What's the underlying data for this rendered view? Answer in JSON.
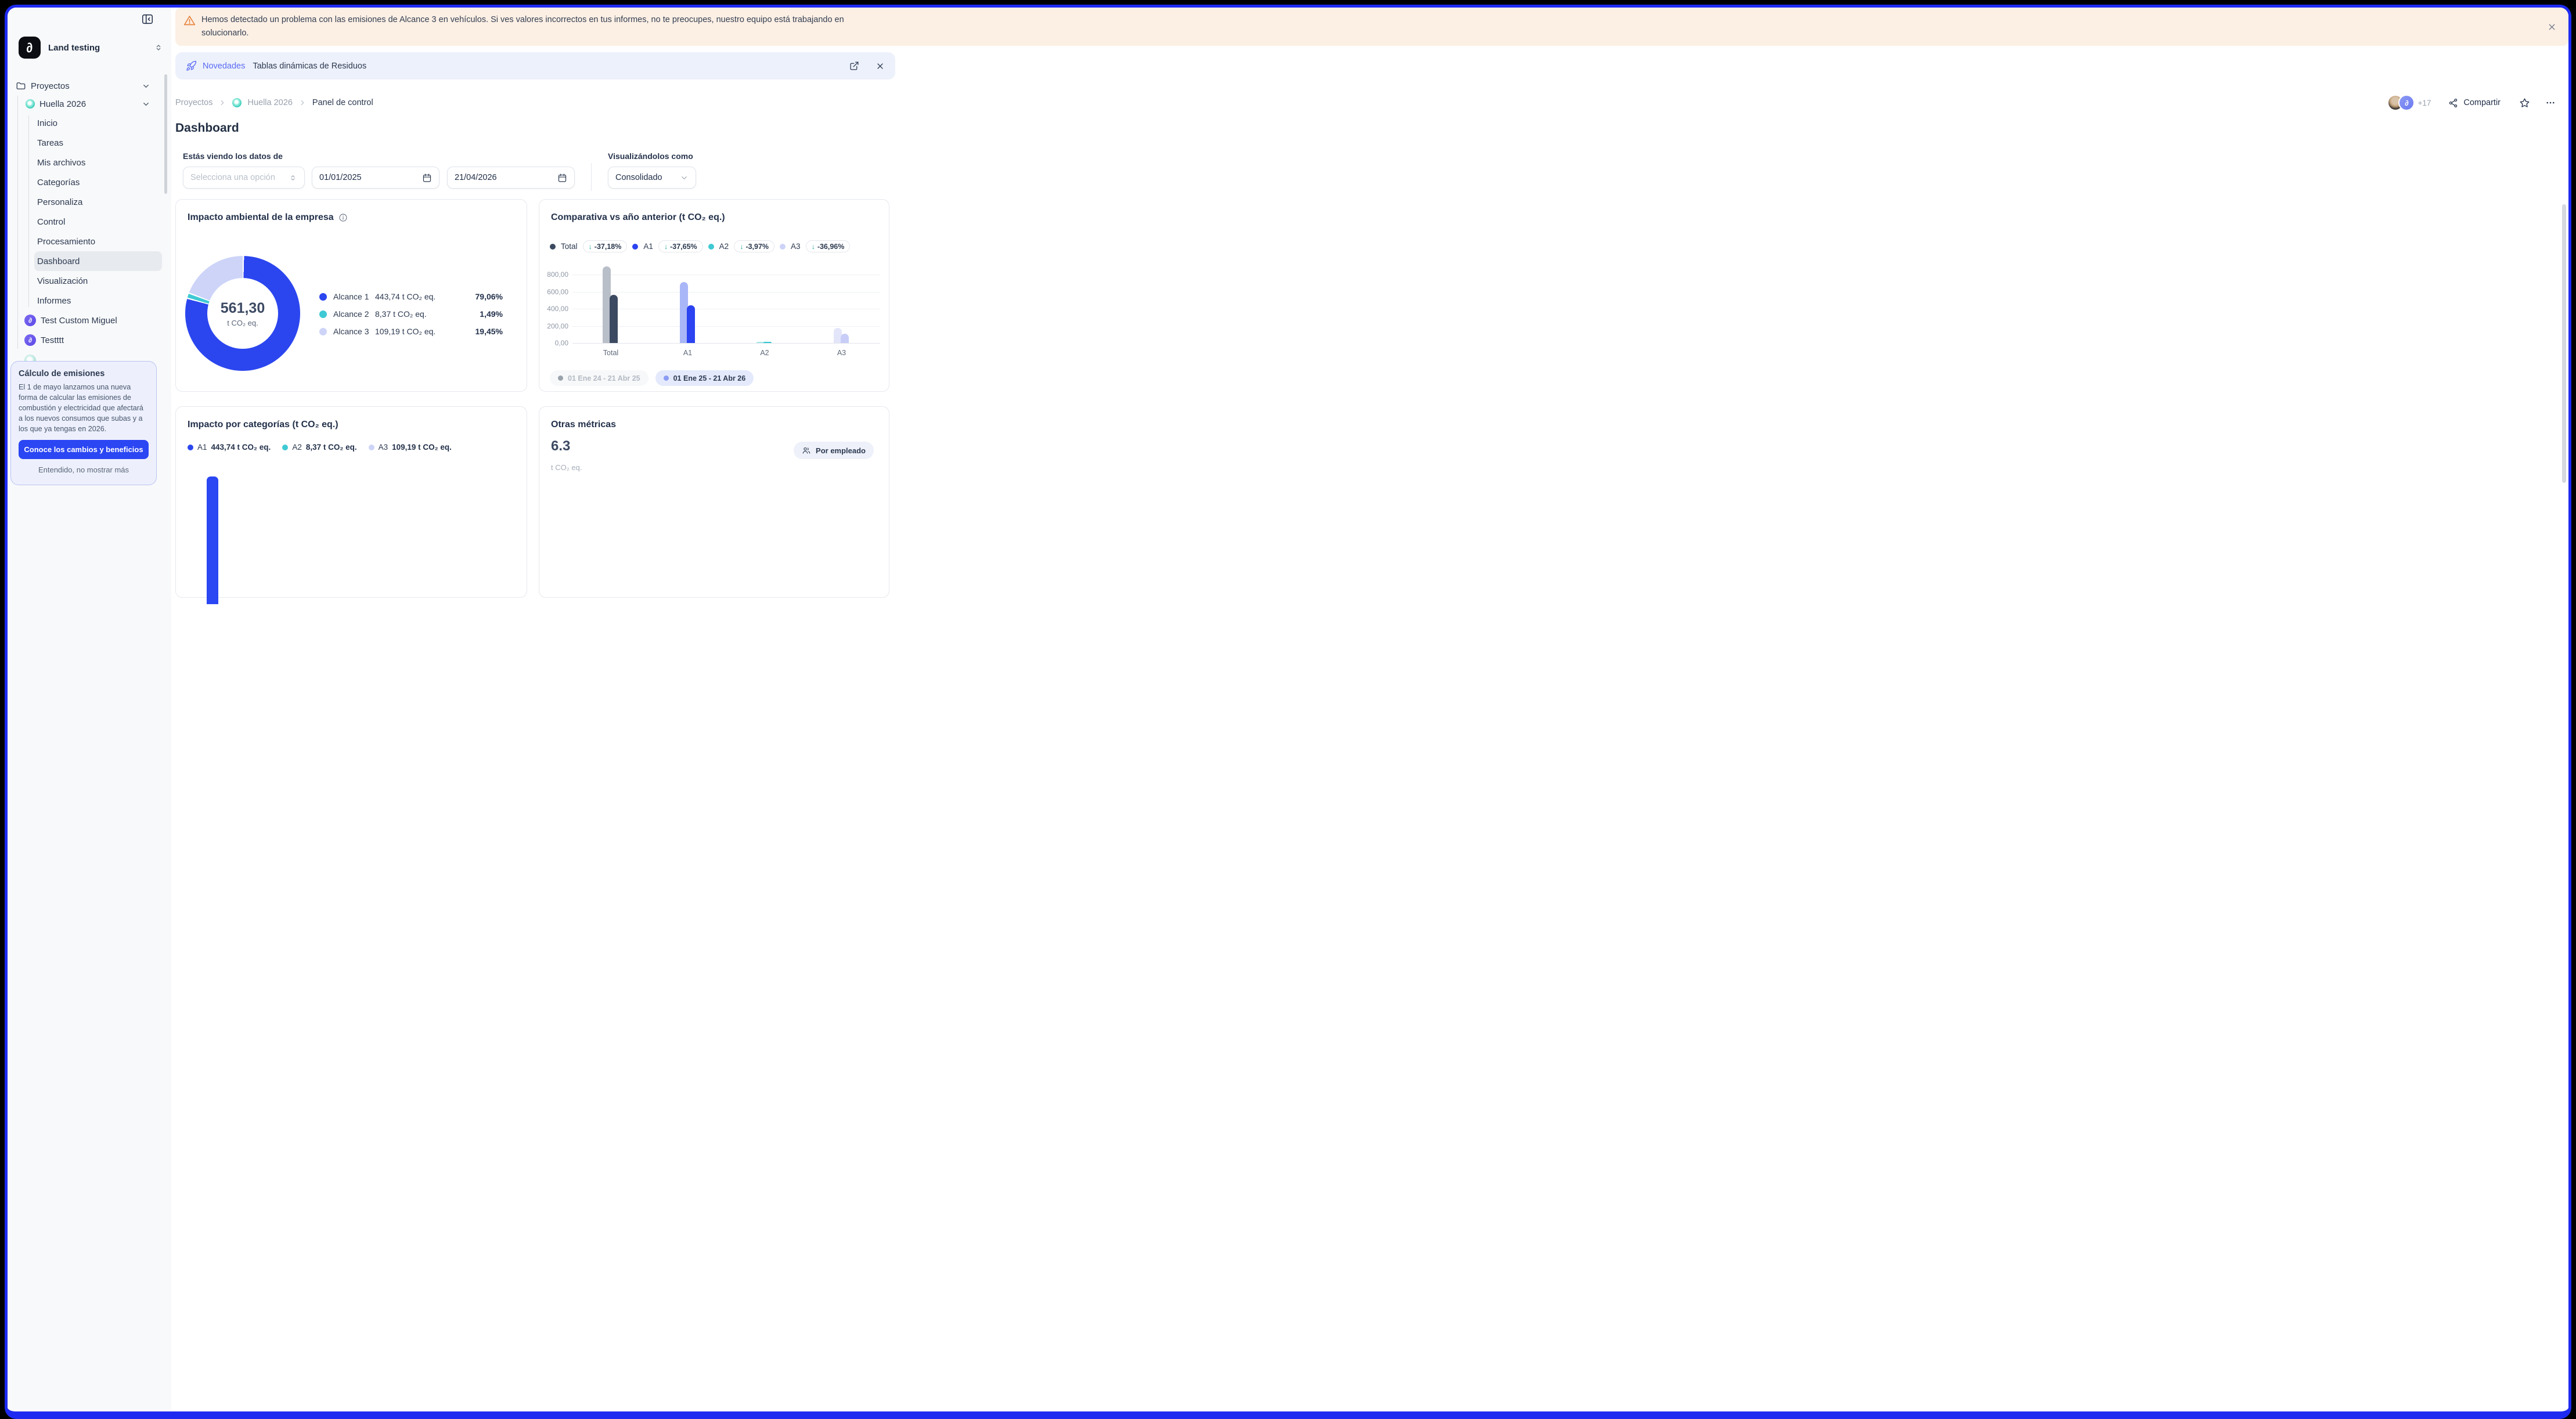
{
  "window": {
    "frame_color": "#1e2af0"
  },
  "alert_banner": {
    "text": "Hemos detectado un problema con las emisiones de Alcance 3 en vehículos. Si ves valores incorrectos en tus informes, no te preocupes, nuestro equipo está trabajando en solucionarlo."
  },
  "news_bar": {
    "badge": "Novedades",
    "text": "Tablas dinámicas de Residuos",
    "accent_color": "#5a6bf4"
  },
  "sidebar": {
    "workspace": {
      "name": "Land testing"
    },
    "sections": {
      "proyectos_label": "Proyectos",
      "project_name": "Huella 2026",
      "items": [
        "Inicio",
        "Tareas",
        "Mis archivos",
        "Categorías",
        "Personaliza",
        "Control",
        "Procesamiento",
        "Dashboard",
        "Visualización",
        "Informes"
      ],
      "active_item": "Dashboard",
      "other_projects": [
        "Test Custom Miguel",
        "Testttt"
      ]
    },
    "promo_card": {
      "title": "Cálculo de emisiones",
      "body": "El 1 de mayo lanzamos una nueva forma de calcular las emisiones de combustión y electricidad que afectará a los nuevos consumos que subas y a los que ya tengas en 2026.",
      "cta": "Conoce los cambios y beneficios",
      "dismiss": "Entendido, no mostrar más",
      "cta_color": "#2b46f3"
    }
  },
  "breadcrumb": {
    "items": [
      "Proyectos",
      "Huella 2026",
      "Panel de control"
    ]
  },
  "header_actions": {
    "avatars_extra": "+17",
    "share_label": "Compartir"
  },
  "page": {
    "title": "Dashboard"
  },
  "filters": {
    "label": "Estás viendo los datos de",
    "scope_placeholder": "Selecciona una opción",
    "date_from": "01/01/2025",
    "date_to": "21/04/2026",
    "view_label": "Visualizándolos como",
    "view_value": "Consolidado"
  },
  "impact_card": {
    "title": "Impacto ambiental de la empresa",
    "total_value": "561,30",
    "total_unit": "t CO₂ eq.",
    "legend": [
      {
        "label": "Alcance 1",
        "value": "443,74 t CO₂ eq.",
        "pct": "79,06%",
        "color": "#2b46ef"
      },
      {
        "label": "Alcance 2",
        "value": "8,37 t CO₂ eq.",
        "pct": "1,49%",
        "color": "#3ec9d4"
      },
      {
        "label": "Alcance 3",
        "value": "109,19 t CO₂ eq.",
        "pct": "19,45%",
        "color": "#cdd4f8"
      }
    ]
  },
  "comparison_card": {
    "title": "Comparativa vs año anterior (t CO₂ eq.)",
    "legend": [
      {
        "label": "Total",
        "color": "#3c4a61",
        "delta": "-37,18%"
      },
      {
        "label": "A1",
        "color": "#2b43f0",
        "delta": "-37,65%"
      },
      {
        "label": "A2",
        "color": "#3ec9d4",
        "delta": "-3,97%"
      },
      {
        "label": "A3",
        "color": "#cdd4f8",
        "delta": "-36,96%"
      }
    ],
    "periods": [
      {
        "label": "01 Ene 24 - 21 Abr 25",
        "active": false
      },
      {
        "label": "01 Ene 25 - 21 Abr 26",
        "active": true
      }
    ]
  },
  "categories_card": {
    "title": "Impacto por categorías (t CO₂ eq.)",
    "legend": [
      {
        "label": "A1",
        "value": "443,74 t CO₂ eq.",
        "color": "#2b46ef"
      },
      {
        "label": "A2",
        "value": "8,37 t CO₂ eq.",
        "color": "#3ec9d4"
      },
      {
        "label": "A3",
        "value": "109,19 t CO₂ eq.",
        "color": "#cdd4f8"
      }
    ]
  },
  "metrics_card": {
    "title": "Otras métricas",
    "value": "6.3",
    "unit": "t CO₂ eq.",
    "chip": "Por empleado"
  },
  "chart_data": [
    {
      "type": "pie",
      "title": "Impacto ambiental de la empresa",
      "labels": [
        "Alcance 1",
        "Alcance 2",
        "Alcance 3"
      ],
      "values": [
        443.74,
        8.37,
        109.19
      ],
      "percentages": [
        79.06,
        1.49,
        19.45
      ],
      "total": 561.3,
      "unit": "t CO₂ eq.",
      "colors": [
        "#2b46ef",
        "#3ec9d4",
        "#cdd4f8"
      ]
    },
    {
      "type": "bar",
      "title": "Comparativa vs año anterior (t CO₂ eq.)",
      "categories": [
        "Total",
        "A1",
        "A2",
        "A3"
      ],
      "series": [
        {
          "name": "01 Ene 24 - 21 Abr 25",
          "values": [
            893.45,
            711.73,
            8.72,
            173.19
          ],
          "colors": [
            "#b9bfc9",
            "#a9b6f7",
            "#9fe6ea",
            "#e3e6fa"
          ]
        },
        {
          "name": "01 Ene 25 - 21 Abr 26",
          "values": [
            561.3,
            443.74,
            8.37,
            109.19
          ],
          "colors": [
            "#3c4a61",
            "#2b43f0",
            "#2fc6cf",
            "#c7cdf6"
          ]
        }
      ],
      "ylim": [
        0,
        900
      ],
      "yticks": [
        "0,00",
        "200,00",
        "400,00",
        "600,00",
        "800,00"
      ],
      "ytick_values": [
        0,
        200,
        400,
        600,
        800
      ],
      "deltas": {
        "Total": "-37,18%",
        "A1": "-37,65%",
        "A2": "-3,97%",
        "A3": "-36,96%"
      },
      "legend_position": "top"
    }
  ]
}
